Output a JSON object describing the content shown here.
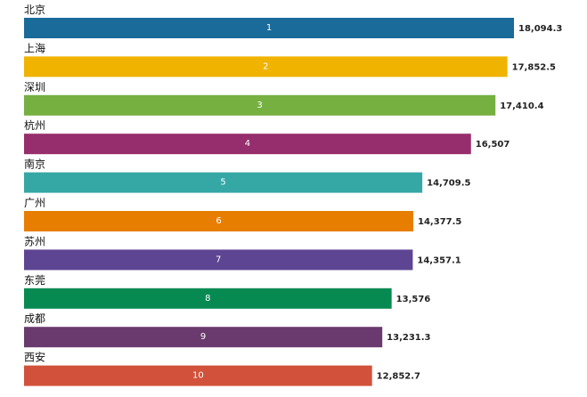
{
  "chart_data": {
    "type": "bar",
    "orientation": "horizontal",
    "categories": [
      "北京",
      "上海",
      "深圳",
      "杭州",
      "南京",
      "广州",
      "苏州",
      "东莞",
      "成都",
      "西安"
    ],
    "values": [
      18094.3,
      17852.5,
      17410.4,
      16507,
      14709.5,
      14377.5,
      14357.1,
      13576,
      13231.3,
      12852.7
    ],
    "value_labels": [
      "18,094.3",
      "17,852.5",
      "17,410.4",
      "16,507",
      "14,709.5",
      "14,377.5",
      "14,357.1",
      "13,576",
      "13,231.3",
      "12,852.7"
    ],
    "ranks": [
      "1",
      "2",
      "3",
      "4",
      "5",
      "6",
      "7",
      "8",
      "9",
      "10"
    ],
    "colors": [
      "#1A6A9A",
      "#EFB300",
      "#76B041",
      "#962D6C",
      "#35A8A6",
      "#E87E00",
      "#5E4594",
      "#078A52",
      "#6A3A6E",
      "#D2513A"
    ],
    "xlim": [
      0,
      18094.3
    ],
    "grid": false,
    "legend": "none",
    "title": "",
    "xlabel": "",
    "ylabel": ""
  }
}
